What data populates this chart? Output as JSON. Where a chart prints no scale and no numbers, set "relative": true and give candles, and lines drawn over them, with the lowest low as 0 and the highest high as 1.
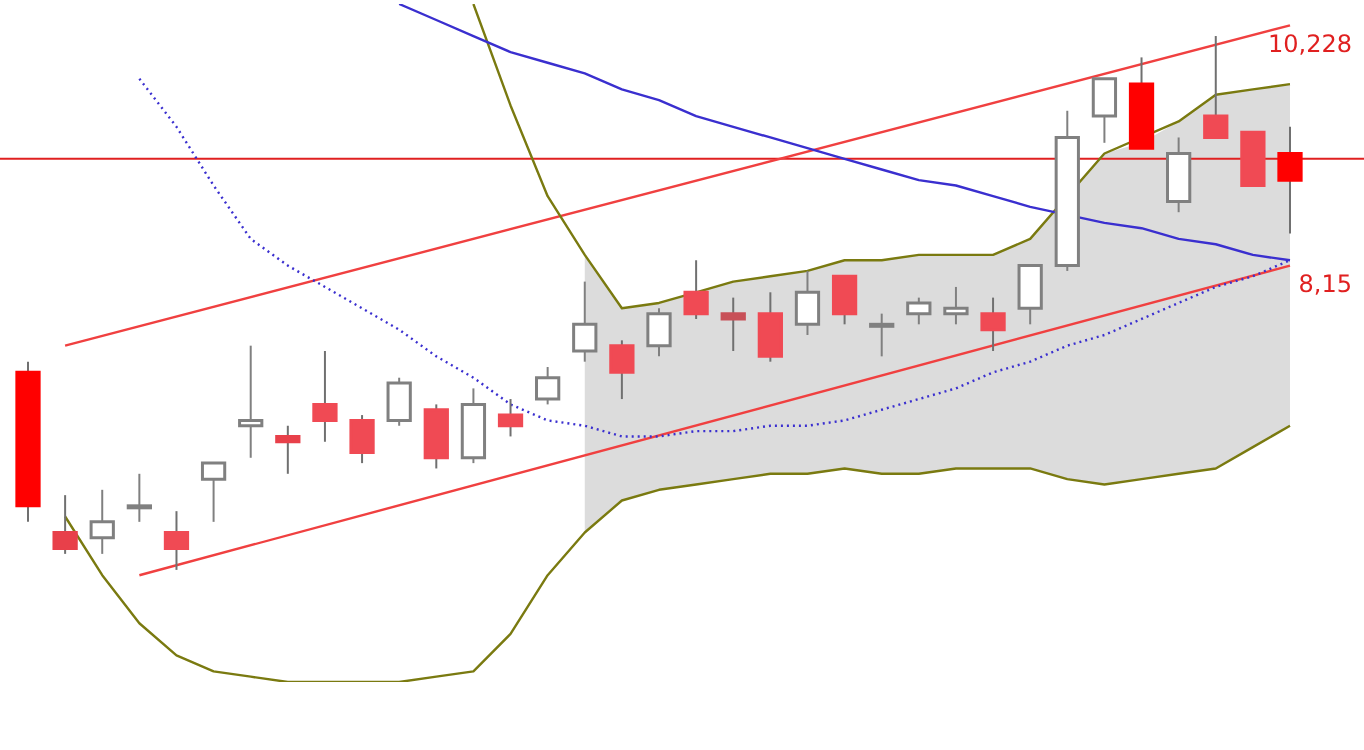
{
  "chart_data": {
    "type": "candlestick",
    "relative": true,
    "legend": false,
    "categories": [
      null,
      null,
      null,
      null,
      null,
      null,
      null,
      null,
      null,
      null,
      null,
      null,
      null,
      null,
      null,
      null,
      null,
      null,
      null,
      null,
      null,
      null,
      null,
      null,
      null,
      null,
      null,
      null,
      null,
      null,
      null,
      null,
      null,
      null,
      null
    ],
    "ohlc": [
      [
        0.37,
        0.39,
        0.09,
        0.12
      ],
      [
        0.07,
        0.14,
        0.03,
        0.04
      ],
      [
        0.06,
        0.15,
        0.03,
        0.09
      ],
      [
        0.12,
        0.18,
        0.09,
        0.12
      ],
      [
        0.07,
        0.11,
        0,
        0.04
      ],
      [
        0.17,
        0.2,
        0.09,
        0.2
      ],
      [
        0.27,
        0.42,
        0.21,
        0.28
      ],
      [
        0.25,
        0.27,
        0.18,
        0.24
      ],
      [
        0.31,
        0.41,
        0.24,
        0.28
      ],
      [
        0.28,
        0.29,
        0.2,
        0.22
      ],
      [
        0.28,
        0.36,
        0.27,
        0.35
      ],
      [
        0.3,
        0.31,
        0.19,
        0.21
      ],
      [
        0.21,
        0.34,
        0.2,
        0.31
      ],
      [
        0.29,
        0.32,
        0.25,
        0.27
      ],
      [
        0.32,
        0.38,
        0.31,
        0.36
      ],
      [
        0.41,
        0.54,
        0.39,
        0.46
      ],
      [
        0.42,
        0.43,
        0.32,
        0.37
      ],
      [
        0.42,
        0.49,
        0.4,
        0.48
      ],
      [
        0.52,
        0.58,
        0.47,
        0.48
      ],
      [
        0.48,
        0.51,
        0.41,
        0.47
      ],
      [
        0.48,
        0.52,
        0.39,
        0.4
      ],
      [
        0.46,
        0.56,
        0.44,
        0.52
      ],
      [
        0.55,
        0.55,
        0.46,
        0.48
      ],
      [
        0.46,
        0.48,
        0.4,
        0.46
      ],
      [
        0.48,
        0.51,
        0.46,
        0.5
      ],
      [
        0.48,
        0.53,
        0.46,
        0.49
      ],
      [
        0.48,
        0.51,
        0.41,
        0.45
      ],
      [
        0.49,
        0.57,
        0.46,
        0.57
      ],
      [
        0.57,
        0.86,
        0.56,
        0.81
      ],
      [
        0.85,
        0.92,
        0.8,
        0.92
      ],
      [
        0.91,
        0.96,
        0.79,
        0.79
      ],
      [
        0.69,
        0.81,
        0.67,
        0.78
      ],
      [
        0.85,
        1,
        0.81,
        0.81
      ],
      [
        0.82,
        0.82,
        0.72,
        0.72
      ],
      [
        0.78,
        0.83,
        0.63,
        0.73
      ]
    ],
    "colors": [
      "#ff0000",
      "#e8404a",
      "#ffffff",
      "#ffffff",
      "#f04a54",
      "#ffffff",
      "#ffffff",
      "#e8404a",
      "#f04a54",
      "#f04a54",
      "#ffffff",
      "#f04a54",
      "#ffffff",
      "#f04a54",
      "#ffffff",
      "#ffffff",
      "#f04a54",
      "#ffffff",
      "#f04a54",
      "#c85058",
      "#f04a54",
      "#ffffff",
      "#f04a54",
      "#ffffff",
      "#ffffff",
      "#ffffff",
      "#f04a54",
      "#ffffff",
      "#ffffff",
      "#ffffff",
      "#ff0000",
      "#ffffff",
      "#f04a54",
      "#f04a54",
      "#ff0000"
    ],
    "series": [
      {
        "type": "line",
        "color": "#3a2fcf",
        "values": [
          null,
          null,
          null,
          null,
          null,
          null,
          null,
          null,
          null,
          null,
          1.06,
          1.03,
          1.0,
          0.97,
          0.95,
          0.93,
          0.9,
          0.88,
          0.85,
          0.83,
          0.81,
          0.79,
          0.77,
          0.75,
          0.73,
          0.72,
          0.7,
          0.68,
          null,
          0.65,
          0.64,
          0.62,
          0.61,
          0.59,
          0.58
        ],
        "upper": [
          null,
          null,
          null,
          null,
          null,
          null,
          null,
          null,
          null,
          null,
          null,
          null,
          null,
          null,
          null,
          0.59,
          0.49,
          0.5,
          0.52,
          0.54,
          0.55,
          0.56,
          0.58,
          0.58,
          0.59,
          0.59,
          0.59,
          0.62,
          0.7,
          0.78,
          0.8,
          0.84,
          0.89,
          0.9,
          0.91
        ],
        "lower": [
          null,
          null,
          null,
          null,
          null,
          null,
          null,
          null,
          null,
          null,
          null,
          null,
          null,
          null,
          null,
          0.07,
          0.13,
          0.15,
          0.16,
          0.17,
          0.18,
          0.18,
          0.19,
          0.18,
          0.18,
          0.19,
          0.19,
          0.19,
          0.17,
          0.16,
          0.17,
          0.18,
          0.19,
          0.23,
          0.27
        ]
      },
      {
        "type": "line",
        "color": "#7a7a10",
        "values": [
          null,
          null,
          null,
          null,
          null,
          null,
          null,
          null,
          null,
          null,
          null,
          null,
          1.06,
          0.87,
          0.7,
          0.59,
          0.49,
          0.5,
          0.52,
          0.54,
          0.55,
          0.56,
          0.58,
          0.58,
          0.59,
          0.59,
          0.59,
          0.62,
          null,
          0.78,
          null,
          0.84,
          0.89,
          0.9,
          0.91
        ]
      },
      {
        "type": "line",
        "color": "#7a7a10",
        "values": [
          null,
          0.1,
          -0.01,
          -0.1,
          -0.16,
          -0.19,
          -0.2,
          -0.21,
          -0.21,
          -0.21,
          -0.21,
          -0.2,
          -0.19,
          -0.12,
          -0.01,
          0.07,
          0.13,
          0.15,
          0.16,
          0.17,
          0.18,
          0.18,
          0.19,
          0.18,
          0.18,
          0.19,
          0.19,
          0.19,
          0.17,
          0.16,
          0.17,
          0.18,
          0.19,
          0.23,
          0.27
        ]
      },
      {
        "type": "line",
        "color": "#3a2fcf",
        "line_style": "dotted",
        "values": [
          null,
          null,
          null,
          0.92,
          0.83,
          0.72,
          0.62,
          0.57,
          0.53,
          0.49,
          0.45,
          0.4,
          0.36,
          0.31,
          0.28,
          0.27,
          0.25,
          0.25,
          0.26,
          0.26,
          0.27,
          0.27,
          0.28,
          0.3,
          0.32,
          0.34,
          0.37,
          0.39,
          0.42,
          0.44,
          0.47,
          0.5,
          0.53,
          0.55,
          0.58
        ]
      },
      {
        "type": "line",
        "color": "#f04040",
        "values": [
          null,
          0.42,
          null,
          null,
          null,
          null,
          null,
          null,
          null,
          null,
          null,
          null,
          null,
          null,
          null,
          null,
          null,
          null,
          null,
          null,
          null,
          null,
          null,
          null,
          null,
          null,
          null,
          null,
          null,
          null,
          null,
          null,
          null,
          null,
          1.02
        ]
      },
      {
        "type": "line",
        "color": "#f04040",
        "values": [
          null,
          null,
          null,
          -0.01,
          null,
          null,
          null,
          null,
          null,
          null,
          null,
          null,
          null,
          null,
          null,
          null,
          null,
          null,
          null,
          null,
          null,
          null,
          null,
          null,
          null,
          null,
          null,
          null,
          null,
          null,
          null,
          null,
          null,
          null,
          0.57
        ]
      }
    ],
    "ref_lines": [
      {
        "axis": "y",
        "value": 0.77,
        "color": "#e02020"
      }
    ],
    "annotations": [
      "10,228",
      "8,15"
    ]
  }
}
